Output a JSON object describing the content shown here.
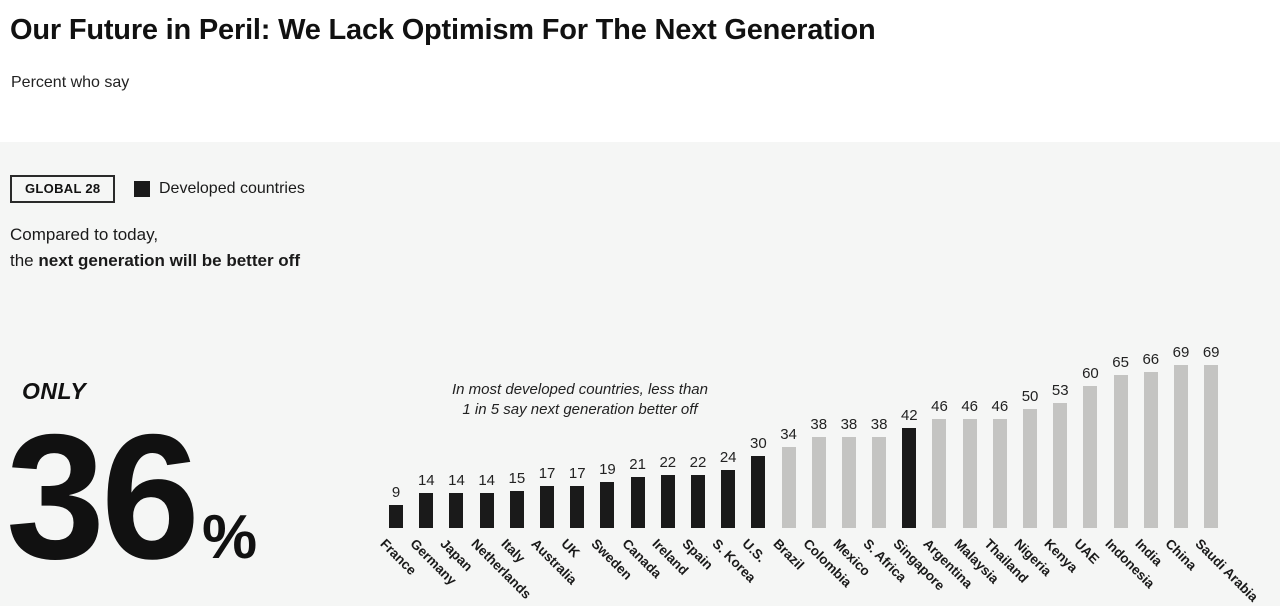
{
  "header": {
    "title": "Our Future in Peril: We Lack Optimism For The Next Generation",
    "subtitle": "Percent who say"
  },
  "controls": {
    "global_badge": "GLOBAL 28",
    "legend_label": "Developed countries"
  },
  "statement": {
    "line1": "Compared to today,",
    "line2_prefix": "the ",
    "line2_bold": "next generation will be better off"
  },
  "stat": {
    "qualifier": "ONLY",
    "value": "36",
    "unit": "%"
  },
  "colors": {
    "panel_background": "#f5f6f5",
    "developed_bar": "#1a1a1a",
    "other_bar": "#c4c4c2",
    "text": "#1a1a1a"
  },
  "chart_data": {
    "type": "bar",
    "title": "Percent who say the next generation will be better off",
    "annotation_line1": "In most developed countries, less than",
    "annotation_line2": "1 in 5 say next generation better off",
    "legend": [
      "Developed countries"
    ],
    "global_average": 36,
    "ylim": [
      0,
      80
    ],
    "grid": false,
    "categories": [
      "France",
      "Germany",
      "Japan",
      "Netherlands",
      "Italy",
      "Australia",
      "UK",
      "Sweden",
      "Canada",
      "Ireland",
      "Spain",
      "S. Korea",
      "U.S.",
      "Brazil",
      "Colombia",
      "Mexico",
      "S. Africa",
      "Singapore",
      "Argentina",
      "Malaysia",
      "Thailand",
      "Nigeria",
      "Kenya",
      "UAE",
      "Indonesia",
      "India",
      "China",
      "Saudi Arabia"
    ],
    "values": [
      9,
      14,
      14,
      14,
      15,
      17,
      17,
      19,
      21,
      22,
      22,
      24,
      30,
      34,
      38,
      38,
      38,
      42,
      46,
      46,
      46,
      50,
      53,
      60,
      65,
      66,
      69,
      69
    ],
    "developed": [
      true,
      true,
      true,
      true,
      true,
      true,
      true,
      true,
      true,
      true,
      true,
      true,
      true,
      false,
      false,
      false,
      false,
      true,
      false,
      false,
      false,
      false,
      false,
      false,
      false,
      false,
      false,
      false
    ],
    "bar_colors": {
      "developed": "#1a1a1a",
      "other": "#c4c4c2"
    }
  }
}
